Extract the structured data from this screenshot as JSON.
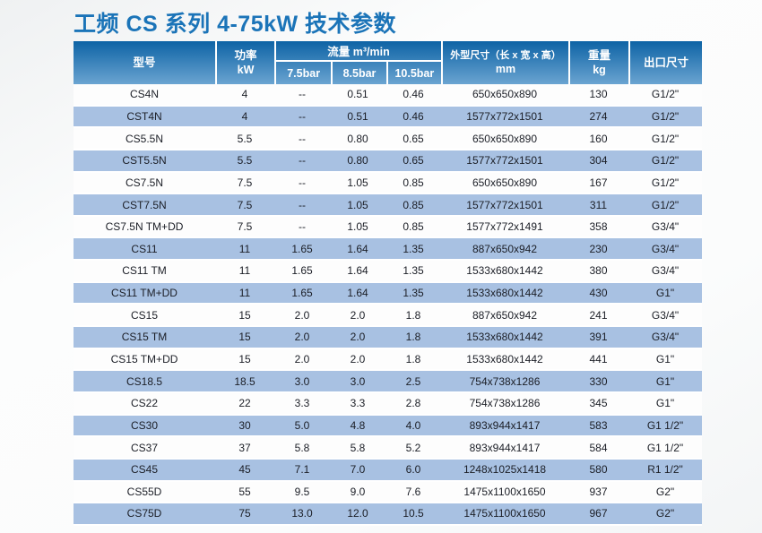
{
  "title": "工频 CS 系列 4-75kW 技术参数",
  "colors": {
    "title_blue": "#1b74b8",
    "header_gradient_top": "#0d63a5",
    "header_gradient_bottom": "#6ba4d1",
    "row_alt_blue": "#a8c1e2",
    "row_white": "#fdfdfd",
    "header_text": "#ffffff",
    "body_text": "#1b1e26"
  },
  "table": {
    "headers": {
      "model": "型号",
      "power_line1": "功率",
      "power_line2": "kW",
      "flow_group": "流量 m³/min",
      "flow_subs": [
        "7.5bar",
        "8.5bar",
        "10.5bar"
      ],
      "dims_line1": "外型尺寸（长 x 宽 x 高）",
      "dims_line2": "mm",
      "weight_line1": "重量",
      "weight_line2": "kg",
      "outlet": "出口尺寸"
    },
    "rows": [
      [
        "CS4N",
        "4",
        "--",
        "0.51",
        "0.46",
        "650x650x890",
        "130",
        "G1/2\""
      ],
      [
        "CST4N",
        "4",
        "--",
        "0.51",
        "0.46",
        "1577x772x1501",
        "274",
        "G1/2\""
      ],
      [
        "CS5.5N",
        "5.5",
        "--",
        "0.80",
        "0.65",
        "650x650x890",
        "160",
        "G1/2\""
      ],
      [
        "CST5.5N",
        "5.5",
        "--",
        "0.80",
        "0.65",
        "1577x772x1501",
        "304",
        "G1/2\""
      ],
      [
        "CS7.5N",
        "7.5",
        "--",
        "1.05",
        "0.85",
        "650x650x890",
        "167",
        "G1/2\""
      ],
      [
        "CST7.5N",
        "7.5",
        "--",
        "1.05",
        "0.85",
        "1577x772x1501",
        "311",
        "G1/2\""
      ],
      [
        "CS7.5N TM+DD",
        "7.5",
        "--",
        "1.05",
        "0.85",
        "1577x772x1491",
        "358",
        "G3/4\""
      ],
      [
        "CS11",
        "11",
        "1.65",
        "1.64",
        "1.35",
        "887x650x942",
        "230",
        "G3/4\""
      ],
      [
        "CS11 TM",
        "11",
        "1.65",
        "1.64",
        "1.35",
        "1533x680x1442",
        "380",
        "G3/4\""
      ],
      [
        "CS11 TM+DD",
        "11",
        "1.65",
        "1.64",
        "1.35",
        "1533x680x1442",
        "430",
        "G1\""
      ],
      [
        "CS15",
        "15",
        "2.0",
        "2.0",
        "1.8",
        "887x650x942",
        "241",
        "G3/4\""
      ],
      [
        "CS15 TM",
        "15",
        "2.0",
        "2.0",
        "1.8",
        "1533x680x1442",
        "391",
        "G3/4\""
      ],
      [
        "CS15 TM+DD",
        "15",
        "2.0",
        "2.0",
        "1.8",
        "1533x680x1442",
        "441",
        "G1\""
      ],
      [
        "CS18.5",
        "18.5",
        "3.0",
        "3.0",
        "2.5",
        "754x738x1286",
        "330",
        "G1\""
      ],
      [
        "CS22",
        "22",
        "3.3",
        "3.3",
        "2.8",
        "754x738x1286",
        "345",
        "G1\""
      ],
      [
        "CS30",
        "30",
        "5.0",
        "4.8",
        "4.0",
        "893x944x1417",
        "583",
        "G1 1/2\""
      ],
      [
        "CS37",
        "37",
        "5.8",
        "5.8",
        "5.2",
        "893x944x1417",
        "584",
        "G1 1/2\""
      ],
      [
        "CS45",
        "45",
        "7.1",
        "7.0",
        "6.0",
        "1248x1025x1418",
        "580",
        "R1 1/2\""
      ],
      [
        "CS55D",
        "55",
        "9.5",
        "9.0",
        "7.6",
        "1475x1100x1650",
        "937",
        "G2\""
      ],
      [
        "CS75D",
        "75",
        "13.0",
        "12.0",
        "10.5",
        "1475x1100x1650",
        "967",
        "G2\""
      ]
    ]
  }
}
